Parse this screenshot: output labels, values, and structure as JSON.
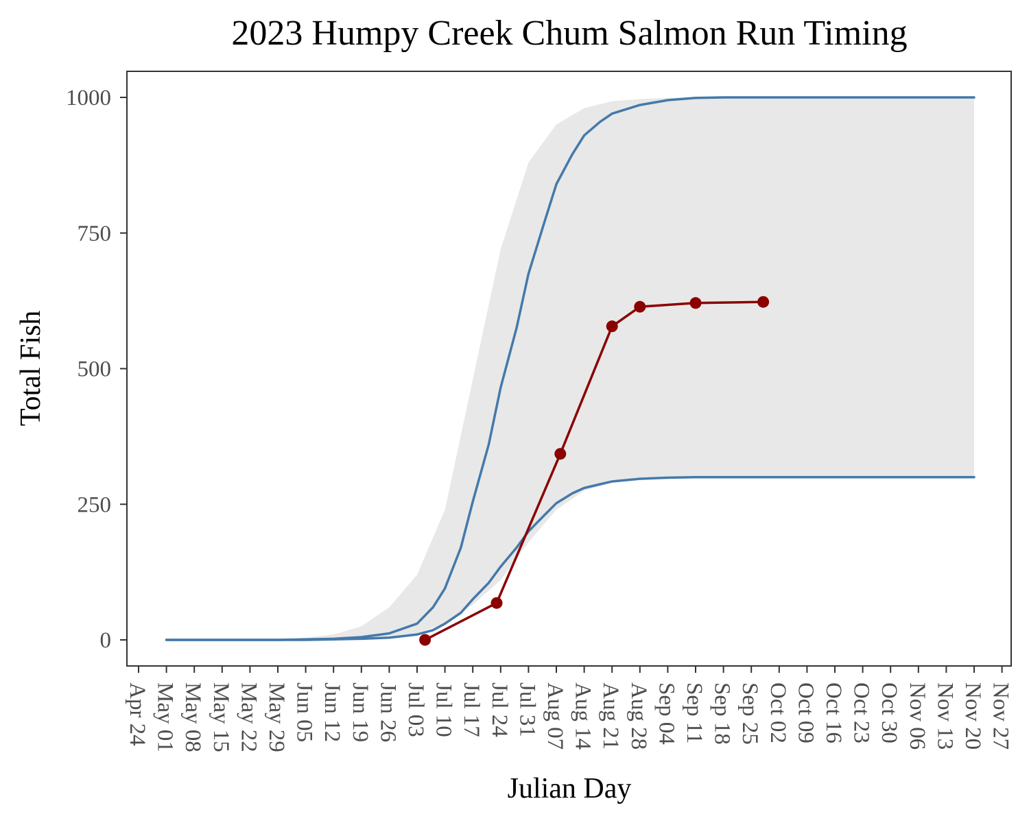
{
  "chart_data": {
    "type": "line",
    "title": "2023 Humpy Creek Chum Salmon Run Timing",
    "xlabel": "Julian Day",
    "ylabel": "Total Fish",
    "year": 2023,
    "xlim": [
      "2023-04-24",
      "2023-11-27"
    ],
    "ylim": [
      -45,
      1050
    ],
    "grid": false,
    "legend": "none",
    "y_ticks": [
      0,
      250,
      500,
      750,
      1000
    ],
    "x_ticks": [
      "2023-04-24",
      "2023-05-01",
      "2023-05-08",
      "2023-05-15",
      "2023-05-22",
      "2023-05-29",
      "2023-06-05",
      "2023-06-12",
      "2023-06-19",
      "2023-06-26",
      "2023-07-03",
      "2023-07-10",
      "2023-07-17",
      "2023-07-24",
      "2023-07-31",
      "2023-08-07",
      "2023-08-14",
      "2023-08-21",
      "2023-08-28",
      "2023-09-04",
      "2023-09-11",
      "2023-09-18",
      "2023-09-25",
      "2023-10-02",
      "2023-10-09",
      "2023-10-16",
      "2023-10-23",
      "2023-10-30",
      "2023-11-06",
      "2023-11-13",
      "2023-11-20",
      "2023-11-27"
    ],
    "x_tick_labels": [
      "Apr 24",
      "May 01",
      "May 08",
      "May 15",
      "May 22",
      "May 29",
      "Jun 05",
      "Jun 12",
      "Jun 19",
      "Jun 26",
      "Jul 03",
      "Jul 10",
      "Jul 17",
      "Jul 24",
      "Jul 31",
      "Aug 07",
      "Aug 14",
      "Aug 21",
      "Aug 28",
      "Sep 04",
      "Sep 11",
      "Sep 18",
      "Sep 25",
      "Oct 02",
      "Oct 09",
      "Oct 16",
      "Oct 23",
      "Oct 30",
      "Nov 06",
      "Nov 13",
      "Nov 20",
      "Nov 27"
    ],
    "series": [
      {
        "type": "area",
        "x": [
          "2023-05-01",
          "2023-05-29",
          "2023-06-05",
          "2023-06-12",
          "2023-06-19",
          "2023-06-26",
          "2023-07-03",
          "2023-07-10",
          "2023-07-17",
          "2023-07-24",
          "2023-07-31",
          "2023-08-07",
          "2023-08-14",
          "2023-08-21",
          "2023-08-28",
          "2023-09-04",
          "2023-09-11",
          "2023-09-18",
          "2023-10-02",
          "2023-11-20"
        ],
        "lower": [
          0,
          0,
          1,
          2,
          4,
          7,
          12,
          30,
          65,
          110,
          180,
          240,
          275,
          290,
          296,
          299,
          300,
          300,
          300,
          300
        ],
        "upper": [
          0,
          0,
          4,
          10,
          25,
          60,
          120,
          240,
          480,
          720,
          880,
          950,
          980,
          993,
          997,
          999,
          1000,
          1000,
          1000,
          1000
        ],
        "color": "#e8e8e8"
      },
      {
        "type": "line",
        "x": [
          "2023-05-01",
          "2023-05-29",
          "2023-06-05",
          "2023-06-12",
          "2023-06-19",
          "2023-06-26",
          "2023-07-03",
          "2023-07-07",
          "2023-07-10",
          "2023-07-14",
          "2023-07-17",
          "2023-07-21",
          "2023-07-24",
          "2023-07-28",
          "2023-07-31",
          "2023-08-04",
          "2023-08-07",
          "2023-08-11",
          "2023-08-14",
          "2023-08-18",
          "2023-08-21",
          "2023-08-28",
          "2023-09-04",
          "2023-09-11",
          "2023-09-18",
          "2023-11-20"
        ],
        "values": [
          0,
          0,
          1,
          2,
          5,
          12,
          30,
          60,
          95,
          170,
          255,
          360,
          465,
          575,
          675,
          770,
          840,
          895,
          930,
          955,
          970,
          986,
          995,
          999,
          1000,
          1000
        ],
        "color": "#4479aa"
      },
      {
        "type": "line",
        "x": [
          "2023-05-01",
          "2023-05-29",
          "2023-06-05",
          "2023-06-12",
          "2023-06-19",
          "2023-06-26",
          "2023-07-03",
          "2023-07-07",
          "2023-07-10",
          "2023-07-14",
          "2023-07-17",
          "2023-07-21",
          "2023-07-24",
          "2023-07-28",
          "2023-07-31",
          "2023-08-04",
          "2023-08-07",
          "2023-08-11",
          "2023-08-14",
          "2023-08-18",
          "2023-08-21",
          "2023-08-28",
          "2023-09-04",
          "2023-09-11",
          "2023-09-18",
          "2023-11-20"
        ],
        "values": [
          0,
          0,
          0,
          1,
          2,
          4,
          10,
          18,
          30,
          50,
          75,
          105,
          135,
          170,
          200,
          230,
          252,
          270,
          280,
          287,
          292,
          297,
          299,
          300,
          300,
          300
        ],
        "color": "#4479aa"
      },
      {
        "type": "line+points",
        "x": [
          "2023-07-05",
          "2023-07-23",
          "2023-08-08",
          "2023-08-21",
          "2023-08-28",
          "2023-09-11",
          "2023-09-28"
        ],
        "values": [
          0,
          68,
          343,
          578,
          614,
          621,
          623
        ],
        "color": "#8b0000"
      }
    ]
  }
}
